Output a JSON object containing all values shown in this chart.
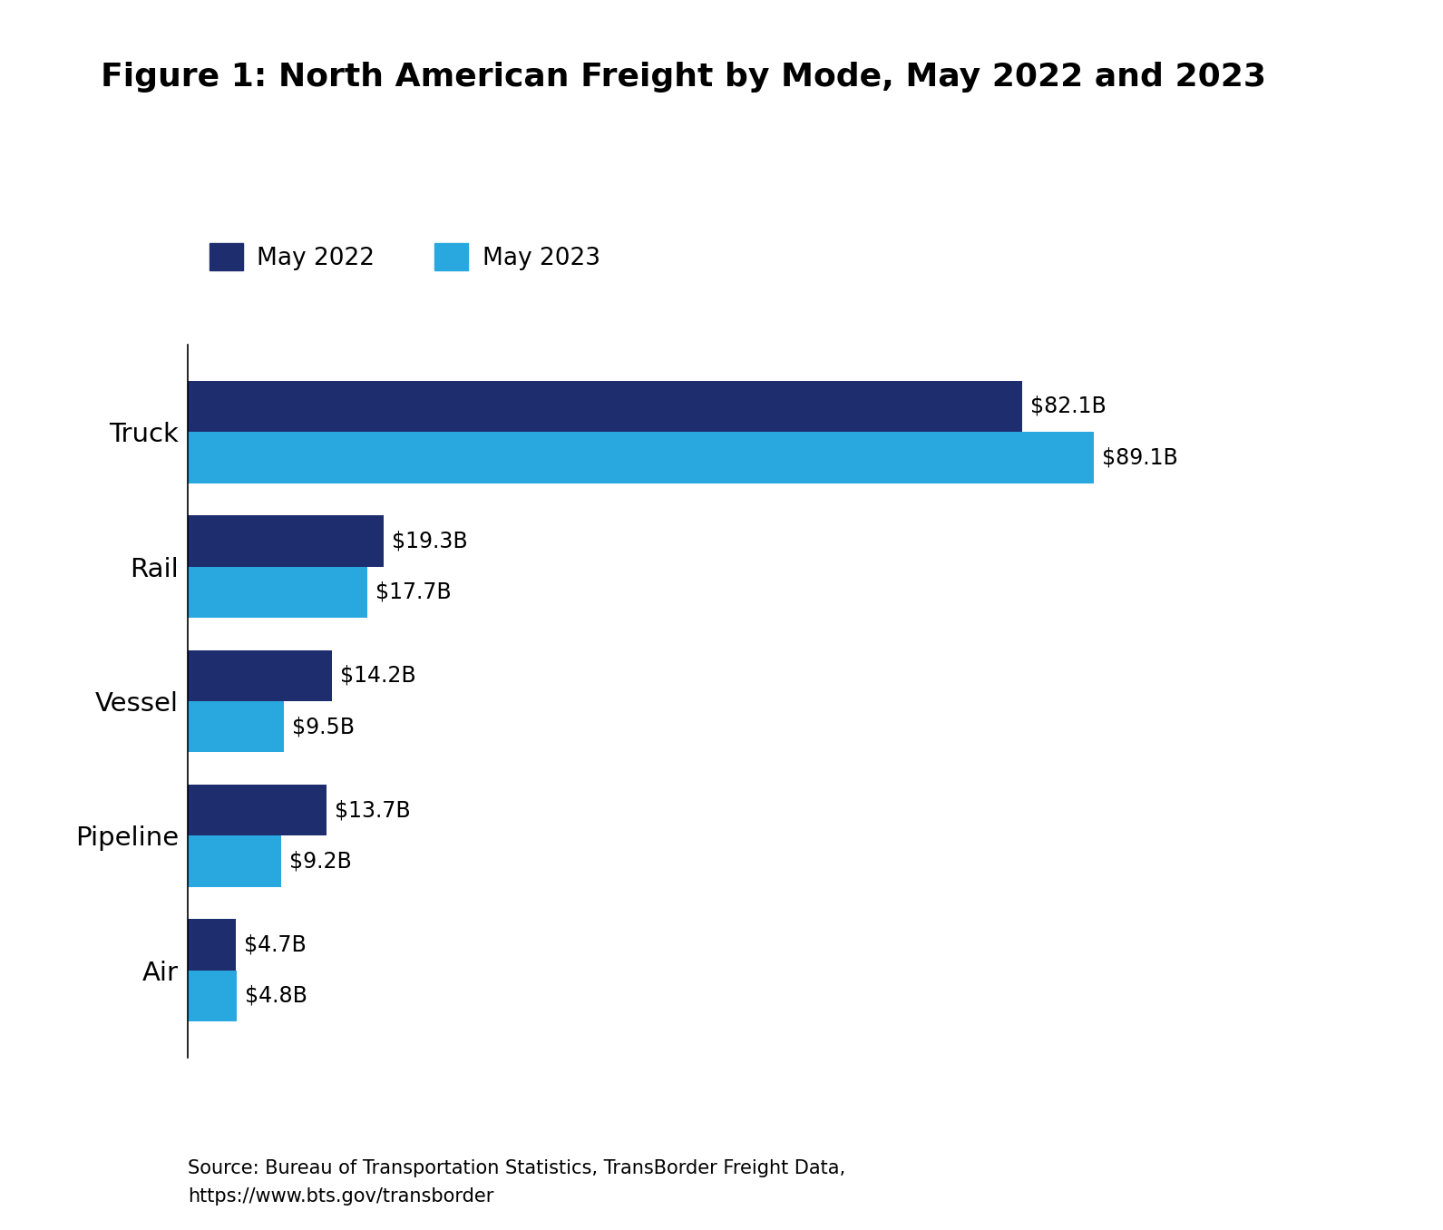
{
  "title": "Figure 1: North American Freight by Mode, May 2022 and 2023",
  "categories": [
    "Truck",
    "Rail",
    "Vessel",
    "Pipeline",
    "Air"
  ],
  "may2022_values": [
    82.1,
    19.3,
    14.2,
    13.7,
    4.7
  ],
  "may2023_values": [
    89.1,
    17.7,
    9.5,
    9.2,
    4.8
  ],
  "may2022_labels": [
    "$82.1B",
    "$19.3B",
    "$14.2B",
    "$13.7B",
    "$4.7B"
  ],
  "may2023_labels": [
    "$89.1B",
    "$17.7B",
    "$9.5B",
    "$9.2B",
    "$4.8B"
  ],
  "color_2022": "#1e2d6e",
  "color_2023": "#29a8e0",
  "legend_2022": "May 2022",
  "legend_2023": "May 2023",
  "source_text": "Source: Bureau of Transportation Statistics, TransBorder Freight Data,\nhttps://www.bts.gov/transborder",
  "background_color": "#ffffff",
  "title_fontsize": 26,
  "label_fontsize": 17,
  "category_fontsize": 21,
  "legend_fontsize": 19,
  "source_fontsize": 15,
  "bar_height": 0.38,
  "xlim": [
    0,
    105
  ]
}
